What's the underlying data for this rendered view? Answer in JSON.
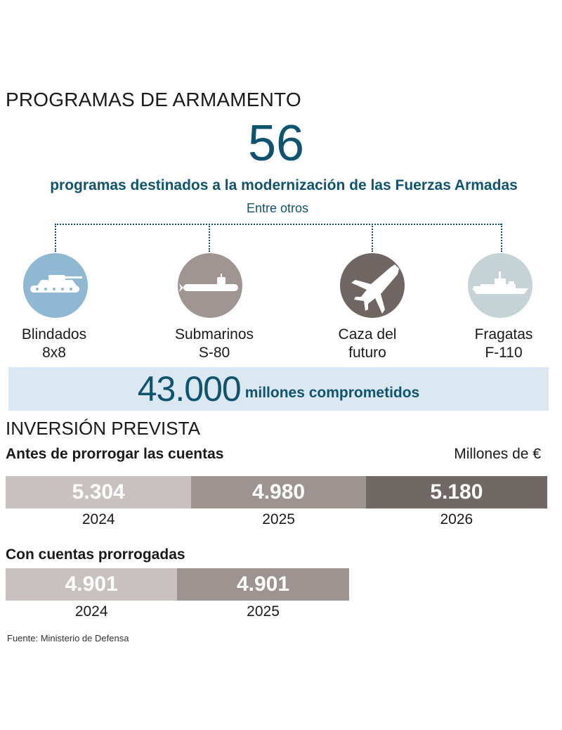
{
  "header": {
    "title": "PROGRAMAS DE ARMAMENTO",
    "big_number": "56",
    "subtitle": "programas destinados a la modernización de las Fuerzas Armadas",
    "among_others": "Entre otros"
  },
  "programs": [
    {
      "label_line1": "Blindados",
      "label_line2": "8x8",
      "icon": "tank-icon",
      "color": "#8fb8d3"
    },
    {
      "label_line1": "Submarinos",
      "label_line2": "S-80",
      "icon": "submarine-icon",
      "color": "#a19594"
    },
    {
      "label_line1": "Caza del",
      "label_line2": "futuro",
      "icon": "fighter-jet-icon",
      "color": "#6f6663"
    },
    {
      "label_line1": "Fragatas",
      "label_line2": "F-110",
      "icon": "frigate-icon",
      "color": "#c5d3d6"
    }
  ],
  "commitment": {
    "number": "43.000",
    "text": "millones comprometidos"
  },
  "investment": {
    "title": "INVERSIÓN PREVISTA",
    "unit": "Millones de €",
    "source": "Fuente: Ministerio de Defensa"
  },
  "chart_data": [
    {
      "type": "bar",
      "title": "Antes de prorrogar las cuentas",
      "categories": [
        "2024",
        "2025",
        "2026"
      ],
      "values": [
        5304,
        4980,
        5180
      ],
      "value_labels": [
        "5.304",
        "4.980",
        "5.180"
      ],
      "colors": [
        "#c9c1c0",
        "#9d9391",
        "#706865"
      ],
      "unit": "Millones de €"
    },
    {
      "type": "bar",
      "title": "Con cuentas prorrogadas",
      "categories": [
        "2024",
        "2025"
      ],
      "values": [
        4901,
        4901
      ],
      "value_labels": [
        "4.901",
        "4.901"
      ],
      "colors": [
        "#c9c1c0",
        "#9d9391"
      ],
      "unit": "Millones de €"
    }
  ]
}
